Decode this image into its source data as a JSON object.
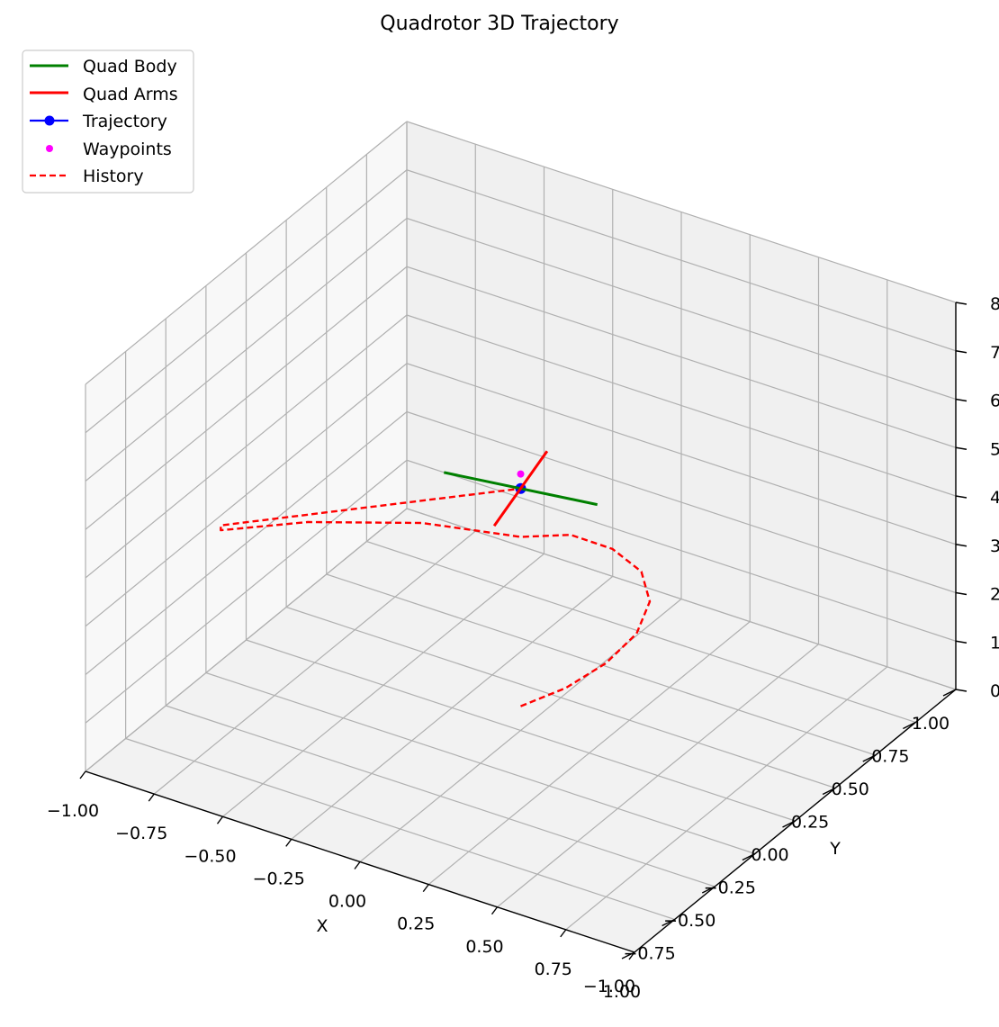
{
  "chart_data": {
    "type": "line",
    "projection": "3d",
    "title": "Quadrotor 3D Trajectory",
    "xlabel": "X",
    "ylabel": "Y",
    "zlabel": "",
    "xlim": [
      -1.0,
      1.0
    ],
    "ylim": [
      -1.0,
      1.0
    ],
    "zlim": [
      0,
      8
    ],
    "xticks": [
      "−1.00",
      "−0.75",
      "−0.50",
      "−0.25",
      "0.00",
      "0.25",
      "0.50",
      "0.75",
      "1.00"
    ],
    "yticks": [
      "−1.00",
      "−0.75",
      "−0.50",
      "−0.25",
      "0.00",
      "0.25",
      "0.50",
      "0.75",
      "1.00"
    ],
    "zticks": [
      "0",
      "1",
      "2",
      "3",
      "4",
      "5",
      "6",
      "7",
      "8"
    ],
    "grid": true,
    "legend_position": "top-left",
    "legend": [
      {
        "name": "Quad Body",
        "color": "#008000",
        "style": "solid"
      },
      {
        "name": "Quad Arms",
        "color": "#ff0000",
        "style": "solid"
      },
      {
        "name": "Trajectory",
        "color": "#0000ff",
        "style": "solid-marker"
      },
      {
        "name": "Waypoints",
        "color": "#ff00ff",
        "style": "marker"
      },
      {
        "name": "History",
        "color": "#ff0000",
        "style": "dashed"
      }
    ],
    "series": [
      {
        "name": "History",
        "color": "#ff0000",
        "style": "dashed",
        "points": [
          [
            0.0,
            0.0,
            0.5
          ],
          [
            0.105,
            0.1,
            0.8
          ],
          [
            0.2,
            0.19,
            1.25
          ],
          [
            0.27,
            0.26,
            1.8
          ],
          [
            0.295,
            0.3,
            2.4
          ],
          [
            0.27,
            0.29,
            3.0
          ],
          [
            0.2,
            0.23,
            3.5
          ],
          [
            0.1,
            0.14,
            3.85
          ],
          [
            0.0,
            0.0,
            4.0
          ],
          [
            -0.3,
            -0.1,
            4.0
          ],
          [
            -0.6,
            -0.3,
            4.0
          ],
          [
            -0.8,
            -0.5,
            4.0
          ],
          [
            -0.8,
            -0.5,
            4.1
          ],
          [
            -0.4,
            -0.25,
            4.55
          ],
          [
            0.0,
            0.0,
            5.0
          ]
        ]
      },
      {
        "name": "Trajectory",
        "color": "#0000ff",
        "points": [
          [
            0.0,
            0.0,
            5.0
          ]
        ]
      },
      {
        "name": "Waypoints",
        "color": "#ff00ff",
        "points": [
          [
            0.0,
            0.0,
            5.3
          ]
        ]
      },
      {
        "name": "Quad Body",
        "color": "#008000",
        "points": [
          [
            -0.25,
            -0.05,
            5.0
          ],
          [
            0.25,
            0.05,
            5.0
          ]
        ]
      },
      {
        "name": "Quad Arms",
        "color": "#ff0000",
        "points": [
          [
            0.05,
            -0.25,
            5.0
          ],
          [
            -0.05,
            0.25,
            5.0
          ]
        ]
      }
    ]
  }
}
